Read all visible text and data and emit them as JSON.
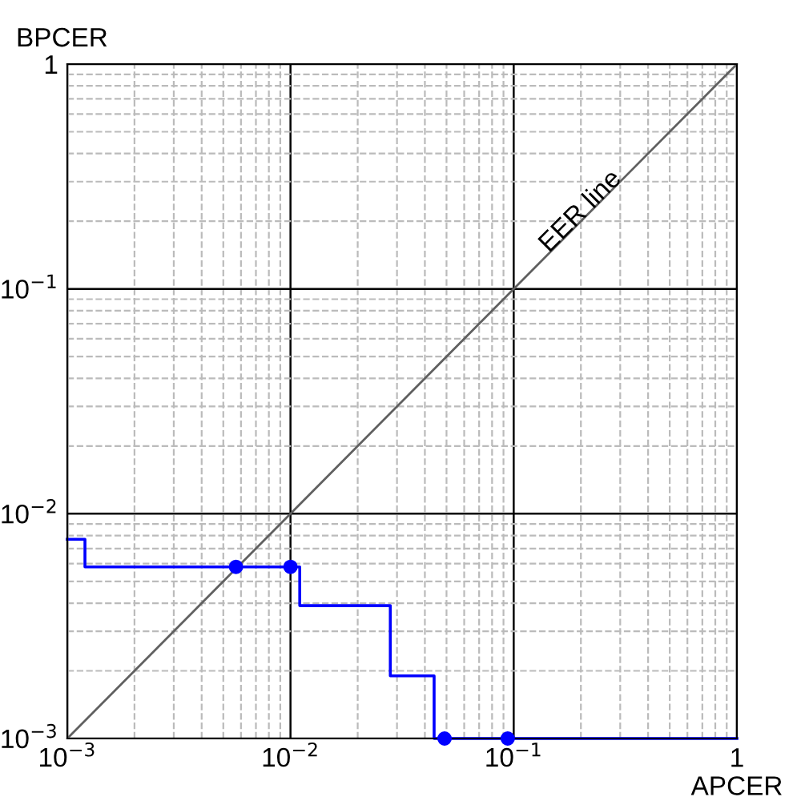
{
  "chart_data": {
    "type": "step",
    "xlabel": "APCER",
    "ylabel": "BPCER",
    "log": "xy",
    "xlim": [
      0.001,
      1
    ],
    "ylim": [
      0.001,
      1
    ],
    "xticks": [
      {
        "value": 0.001,
        "label": "10$^{−3}$"
      },
      {
        "value": 0.01,
        "label": "10$^{−2}$"
      },
      {
        "value": 0.1,
        "label": "10$^{−1}$"
      },
      1
    ],
    "yticks": [
      {
        "value": 0.001,
        "label": "10$^{−3}$"
      },
      {
        "value": 0.01,
        "label": "10$^{−2}$"
      },
      {
        "value": 0.1,
        "label": "10$^{−1}$"
      },
      1
    ],
    "grid": true,
    "legend": false,
    "annotations": [
      {
        "text": "EER line",
        "x": 0.2,
        "y": 0.22
      }
    ],
    "series": [
      {
        "type": "line",
        "color": "#606060",
        "x": [
          0.001,
          1
        ],
        "values": [
          0.001,
          1
        ],
        "marker": "none"
      },
      {
        "color": "#0000ff",
        "x": [
          0.001,
          0.0012,
          0.011,
          0.028,
          0.044,
          1
        ],
        "values": [
          0.0077,
          0.0058,
          0.0039,
          0.0019,
          0.001,
          0.001
        ],
        "marker": "none"
      },
      {
        "type": "scatter",
        "color": "#0000ff",
        "x": [
          0.0057,
          0.01,
          0.049,
          0.094
        ],
        "values": [
          0.0058,
          0.0058,
          0.001,
          0.001
        ],
        "marker": "circle"
      }
    ]
  }
}
